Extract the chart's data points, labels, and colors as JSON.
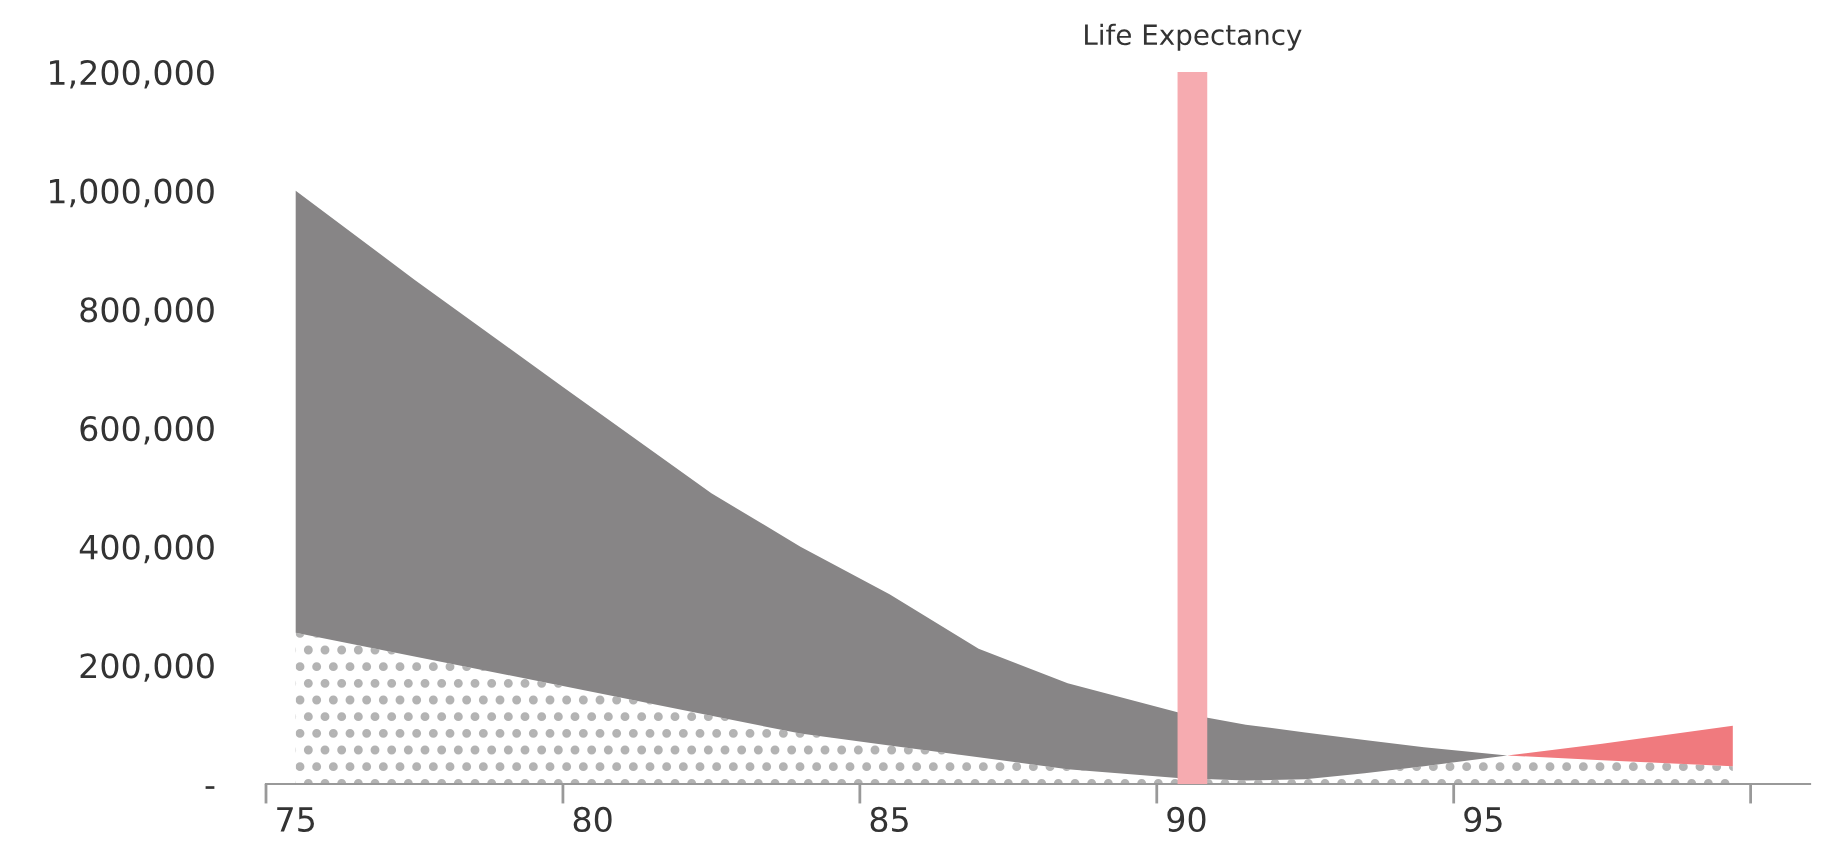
{
  "chart_data": {
    "type": "area",
    "stacked": true,
    "grid": false,
    "legend": false,
    "x": [
      75,
      77,
      79.5,
      82,
      83.5,
      85,
      86.5,
      88,
      89.85,
      91,
      92,
      93,
      94,
      95.4,
      97,
      99.2
    ],
    "series": [
      {
        "color": "#b3b3b3",
        "values": [
          255000,
          215000,
          165000,
          115000,
          85000,
          65000,
          45000,
          25000,
          10000,
          6000,
          8000,
          18000,
          30000,
          48000,
          40000,
          30000
        ]
      },
      {
        "color": "#878586",
        "values": [
          745000,
          635000,
          504000,
          375000,
          315000,
          255000,
          183000,
          145000,
          111000,
          94000,
          79000,
          56000,
          32000,
          0,
          0,
          0
        ]
      },
      {
        "color": "#f07a7e",
        "values": [
          0,
          0,
          0,
          0,
          0,
          0,
          0,
          0,
          0,
          0,
          0,
          0,
          0,
          0,
          28000,
          68000
        ]
      }
    ],
    "xlim": [
      74.5,
      100.5
    ],
    "xticks": [
      {
        "value": 74.5,
        "label": null
      },
      75,
      {
        "value": 79.5,
        "label": null
      },
      80,
      {
        "value": 84.5,
        "label": null
      },
      85,
      {
        "value": 89.5,
        "label": null
      },
      90,
      {
        "value": 94.5,
        "label": null
      },
      95,
      {
        "value": 99.5,
        "label": null
      }
    ],
    "ylim": [
      0,
      1200000
    ],
    "yticks": [
      {
        "value": 0,
        "label": "-"
      },
      {
        "value": 200000,
        "label": "200,000"
      },
      {
        "value": 400000,
        "label": "400,000"
      },
      {
        "value": 600000,
        "label": "600,000"
      },
      {
        "value": 800000,
        "label": "800,000"
      },
      {
        "value": 1000000,
        "label": "1,000,000"
      },
      {
        "value": 1200000,
        "label": "1,200,000"
      }
    ],
    "bands": [
      {
        "axis": "x",
        "from": 89.85,
        "to": 90.35,
        "label": "Life Expectancy",
        "color": "#f6abb0"
      }
    ]
  }
}
